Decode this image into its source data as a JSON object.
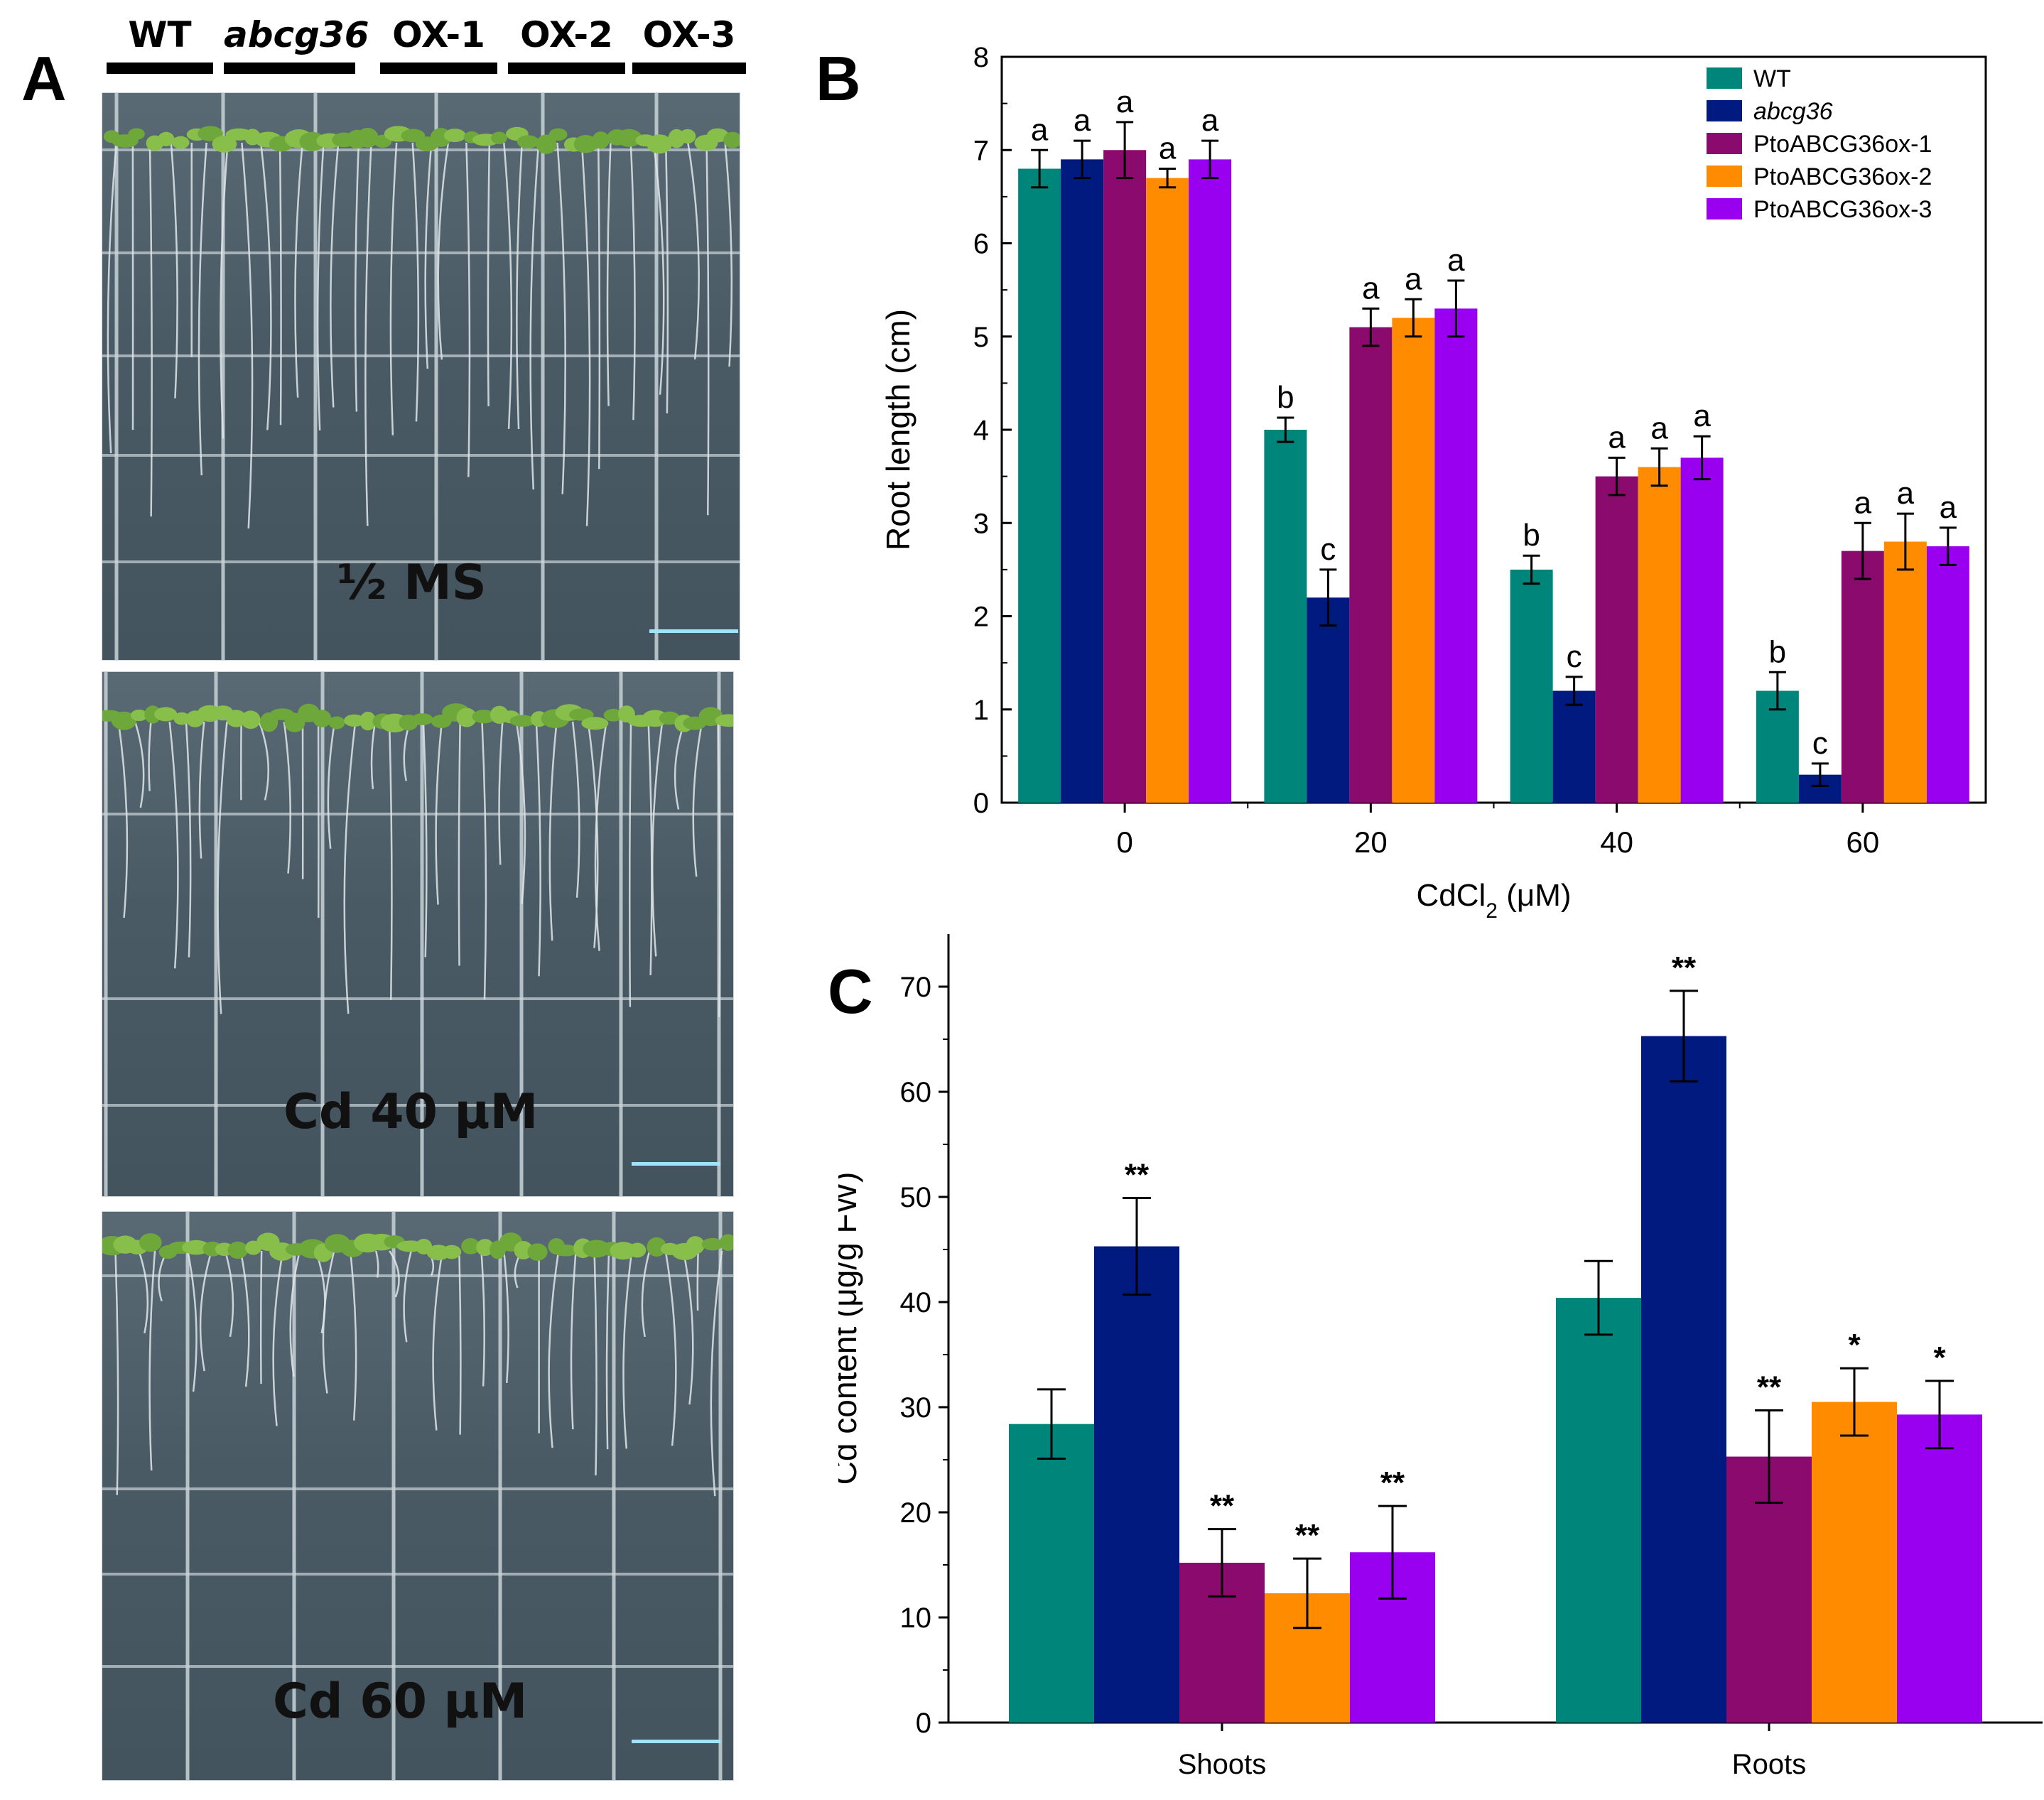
{
  "panels": {
    "a": {
      "letter": "A",
      "genotypes": [
        "WT",
        "abcg36",
        "OX-1",
        "OX-2",
        "OX-3"
      ],
      "plates": [
        {
          "label": "½ MS"
        },
        {
          "label": "Cd 40 μM"
        },
        {
          "label": "Cd 60 μM"
        }
      ]
    },
    "b": {
      "letter": "B"
    },
    "c": {
      "letter": "C"
    }
  },
  "colors": {
    "WT": "#00857a",
    "abcg36": "#001a80",
    "ox1": "#8b0a6e",
    "ox2": "#ff8c00",
    "ox3": "#9a00f0"
  },
  "chart_data": [
    {
      "type": "bar",
      "panel": "B",
      "categories": [
        "0",
        "20",
        "40",
        "60"
      ],
      "xlabel": "CdCl",
      "xlabel_sub": "2",
      "xlabel_unit": " (μM)",
      "ylabel": "Root length (cm)",
      "ylim": [
        0,
        8
      ],
      "yticks": [
        "0",
        "1",
        "2",
        "3",
        "4",
        "5",
        "6",
        "7",
        "8"
      ],
      "legend_position": "top-right",
      "series": [
        {
          "name": "WT",
          "italic": false,
          "values": [
            6.8,
            4.0,
            2.5,
            1.2
          ],
          "errors": [
            0.2,
            0.13,
            0.15,
            0.2
          ],
          "letters": [
            "a",
            "b",
            "b",
            "b"
          ]
        },
        {
          "name": "abcg36",
          "italic": true,
          "values": [
            6.9,
            2.2,
            1.2,
            0.3
          ],
          "errors": [
            0.2,
            0.3,
            0.15,
            0.12
          ],
          "letters": [
            "a",
            "c",
            "c",
            "c"
          ]
        },
        {
          "name": "PtoABCG36ox-1",
          "italic": false,
          "values": [
            7.0,
            5.1,
            3.5,
            2.7
          ],
          "errors": [
            0.3,
            0.2,
            0.2,
            0.3
          ],
          "letters": [
            "a",
            "a",
            "a",
            "a"
          ]
        },
        {
          "name": "PtoABCG36ox-2",
          "italic": false,
          "values": [
            6.7,
            5.2,
            3.6,
            2.8
          ],
          "errors": [
            0.1,
            0.2,
            0.2,
            0.3
          ],
          "letters": [
            "a",
            "a",
            "a",
            "a"
          ]
        },
        {
          "name": "PtoABCG36ox-3",
          "italic": false,
          "values": [
            6.9,
            5.3,
            3.7,
            2.75
          ],
          "errors": [
            0.2,
            0.3,
            0.23,
            0.2
          ],
          "letters": [
            "a",
            "a",
            "a",
            "a"
          ]
        }
      ]
    },
    {
      "type": "bar",
      "panel": "C",
      "categories": [
        "Shoots",
        "Roots"
      ],
      "xlabel": "",
      "ylabel": "Cd content (μg/g FW)",
      "ylim": [
        0,
        75
      ],
      "yticks": [
        "0",
        "10",
        "20",
        "30",
        "40",
        "50",
        "60",
        "70"
      ],
      "series": [
        {
          "name": "WT",
          "values": [
            28.4,
            40.4
          ],
          "errors": [
            3.3,
            3.5
          ],
          "marks": [
            "",
            ""
          ]
        },
        {
          "name": "abcg36",
          "values": [
            45.3,
            65.3
          ],
          "errors": [
            4.6,
            4.3
          ],
          "marks": [
            "**",
            "**"
          ]
        },
        {
          "name": "PtoABCG36ox-1",
          "values": [
            15.2,
            25.3
          ],
          "errors": [
            3.2,
            4.4
          ],
          "marks": [
            "**",
            "**"
          ]
        },
        {
          "name": "PtoABCG36ox-2",
          "values": [
            12.3,
            30.5
          ],
          "errors": [
            3.3,
            3.2
          ],
          "marks": [
            "**",
            "*"
          ]
        },
        {
          "name": "PtoABCG36ox-3",
          "values": [
            16.2,
            29.3
          ],
          "errors": [
            4.4,
            3.2
          ],
          "marks": [
            "**",
            "*"
          ]
        }
      ]
    }
  ]
}
